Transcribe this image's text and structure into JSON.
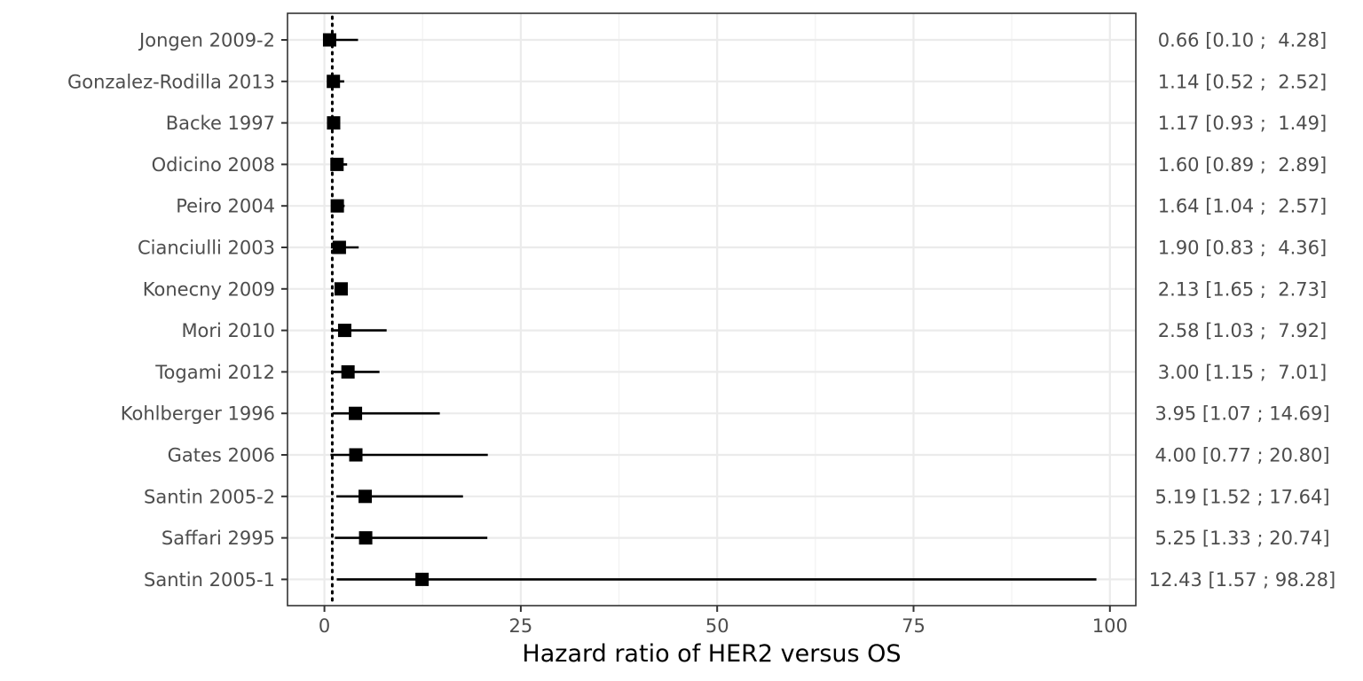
{
  "chart_data": {
    "type": "forest",
    "title": "",
    "xlabel": "Hazard ratio of HER2 versus OS",
    "ylabel": "",
    "xlim": [
      -4.7,
      103.3
    ],
    "x_ticks": [
      0,
      25,
      50,
      75,
      100
    ],
    "x_tick_labels": [
      "0",
      "25",
      "50",
      "75",
      "100"
    ],
    "reference_line": 1,
    "grid": true,
    "legend": "none",
    "colors": {
      "marker": "#000000",
      "ci": "#000000",
      "grid": "#ebebeb",
      "text": "#4d4d4d"
    },
    "studies": [
      {
        "name": "Jongen 2009-2",
        "hr": 0.66,
        "lower": 0.1,
        "upper": 4.28,
        "label": "0.66 [0.10 ;  4.28]"
      },
      {
        "name": "Gonzalez-Rodilla 2013",
        "hr": 1.14,
        "lower": 0.52,
        "upper": 2.52,
        "label": "1.14 [0.52 ;  2.52]"
      },
      {
        "name": "Backe 1997",
        "hr": 1.17,
        "lower": 0.93,
        "upper": 1.49,
        "label": "1.17 [0.93 ;  1.49]"
      },
      {
        "name": "Odicino 2008",
        "hr": 1.6,
        "lower": 0.89,
        "upper": 2.89,
        "label": "1.60 [0.89 ;  2.89]"
      },
      {
        "name": "Peiro 2004",
        "hr": 1.64,
        "lower": 1.04,
        "upper": 2.57,
        "label": "1.64 [1.04 ;  2.57]"
      },
      {
        "name": "Cianciulli 2003",
        "hr": 1.9,
        "lower": 0.83,
        "upper": 4.36,
        "label": "1.90 [0.83 ;  4.36]"
      },
      {
        "name": "Konecny 2009",
        "hr": 2.13,
        "lower": 1.65,
        "upper": 2.73,
        "label": "2.13 [1.65 ;  2.73]"
      },
      {
        "name": "Mori 2010",
        "hr": 2.58,
        "lower": 1.03,
        "upper": 7.92,
        "label": "2.58 [1.03 ;  7.92]"
      },
      {
        "name": "Togami 2012",
        "hr": 3.0,
        "lower": 1.15,
        "upper": 7.01,
        "label": "3.00 [1.15 ;  7.01]"
      },
      {
        "name": "Kohlberger 1996",
        "hr": 3.95,
        "lower": 1.07,
        "upper": 14.69,
        "label": "3.95 [1.07 ; 14.69]"
      },
      {
        "name": "Gates 2006",
        "hr": 4.0,
        "lower": 0.77,
        "upper": 20.8,
        "label": "4.00 [0.77 ; 20.80]"
      },
      {
        "name": "Santin 2005-2",
        "hr": 5.19,
        "lower": 1.52,
        "upper": 17.64,
        "label": "5.19 [1.52 ; 17.64]"
      },
      {
        "name": "Saffari 2995",
        "hr": 5.25,
        "lower": 1.33,
        "upper": 20.74,
        "label": "5.25 [1.33 ; 20.74]"
      },
      {
        "name": "Santin 2005-1",
        "hr": 12.43,
        "lower": 1.57,
        "upper": 98.28,
        "label": "12.43 [1.57 ; 98.28]"
      }
    ]
  }
}
